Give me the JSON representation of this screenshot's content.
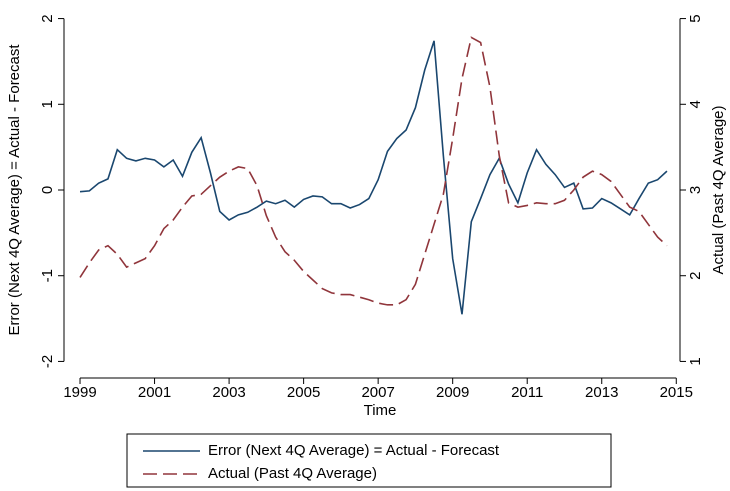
{
  "chart_data": {
    "type": "line",
    "xlabel": "Time",
    "ylabel": "Error (Next 4Q Average) = Actual - Forecast",
    "y2label": "Actual (Past 4Q Average)",
    "x": [
      1999,
      1999.25,
      1999.5,
      1999.75,
      2000,
      2000.25,
      2000.5,
      2000.75,
      2001,
      2001.25,
      2001.5,
      2001.75,
      2002,
      2002.25,
      2002.5,
      2002.75,
      2003,
      2003.25,
      2003.5,
      2003.75,
      2004,
      2004.25,
      2004.5,
      2004.75,
      2005,
      2005.25,
      2005.5,
      2005.75,
      2006,
      2006.25,
      2006.5,
      2006.75,
      2007,
      2007.25,
      2007.5,
      2007.75,
      2008,
      2008.25,
      2008.5,
      2008.75,
      2009,
      2009.25,
      2009.5,
      2009.75,
      2010,
      2010.25,
      2010.5,
      2010.75,
      2011,
      2011.25,
      2011.5,
      2011.75,
      2012,
      2012.25,
      2012.5,
      2012.75,
      2013,
      2013.25,
      2013.5,
      2013.75,
      2014,
      2014.25,
      2014.5,
      2014.75
    ],
    "series": [
      {
        "name": "Error (Next 4Q Average) = Actual - Forecast",
        "color": "#1a476f",
        "style": "solid",
        "axis": "y",
        "values": [
          -0.02,
          -0.01,
          0.08,
          0.13,
          0.47,
          0.37,
          0.34,
          0.37,
          0.35,
          0.27,
          0.35,
          0.16,
          0.44,
          0.61,
          0.2,
          -0.25,
          -0.35,
          -0.29,
          -0.26,
          -0.2,
          -0.13,
          -0.16,
          -0.12,
          -0.2,
          -0.11,
          -0.07,
          -0.08,
          -0.16,
          -0.16,
          -0.21,
          -0.17,
          -0.1,
          0.12,
          0.45,
          0.6,
          0.7,
          0.96,
          1.4,
          1.74,
          0.4,
          -0.8,
          -1.45,
          -0.37,
          -0.1,
          0.18,
          0.37,
          0.07,
          -0.15,
          0.2,
          0.47,
          0.3,
          0.18,
          0.03,
          0.08,
          -0.22,
          -0.21,
          -0.1,
          -0.15,
          -0.22,
          -0.29,
          -0.1,
          0.08,
          0.12,
          0.22
        ]
      },
      {
        "name": "Actual (Past 4Q Average)",
        "color": "#90353b",
        "style": "dashed",
        "axis": "y2",
        "values": [
          1.98,
          2.15,
          2.3,
          2.35,
          2.25,
          2.1,
          2.15,
          2.2,
          2.35,
          2.55,
          2.65,
          2.8,
          2.93,
          2.95,
          3.05,
          3.15,
          3.22,
          3.27,
          3.25,
          3.05,
          2.7,
          2.45,
          2.28,
          2.18,
          2.05,
          1.95,
          1.85,
          1.8,
          1.78,
          1.78,
          1.75,
          1.72,
          1.68,
          1.66,
          1.66,
          1.72,
          1.9,
          2.25,
          2.6,
          2.95,
          3.6,
          4.3,
          4.78,
          4.72,
          4.2,
          3.4,
          2.85,
          2.8,
          2.82,
          2.85,
          2.84,
          2.84,
          2.88,
          3.0,
          3.15,
          3.22,
          3.18,
          3.1,
          2.95,
          2.8,
          2.75,
          2.6,
          2.45,
          2.35
        ]
      }
    ],
    "xlim": [
      1998.57,
      2015.1
    ],
    "xticks": [
      1999,
      2001,
      2003,
      2005,
      2007,
      2009,
      2011,
      2013,
      2015
    ],
    "ylim": [
      -2.1,
      2.1
    ],
    "yticks": [
      -2,
      -1,
      0,
      1,
      2
    ],
    "y2lim": [
      0.9,
      5.1
    ],
    "y2ticks": [
      1,
      2,
      3,
      4,
      5
    ],
    "legend": "bottom"
  }
}
